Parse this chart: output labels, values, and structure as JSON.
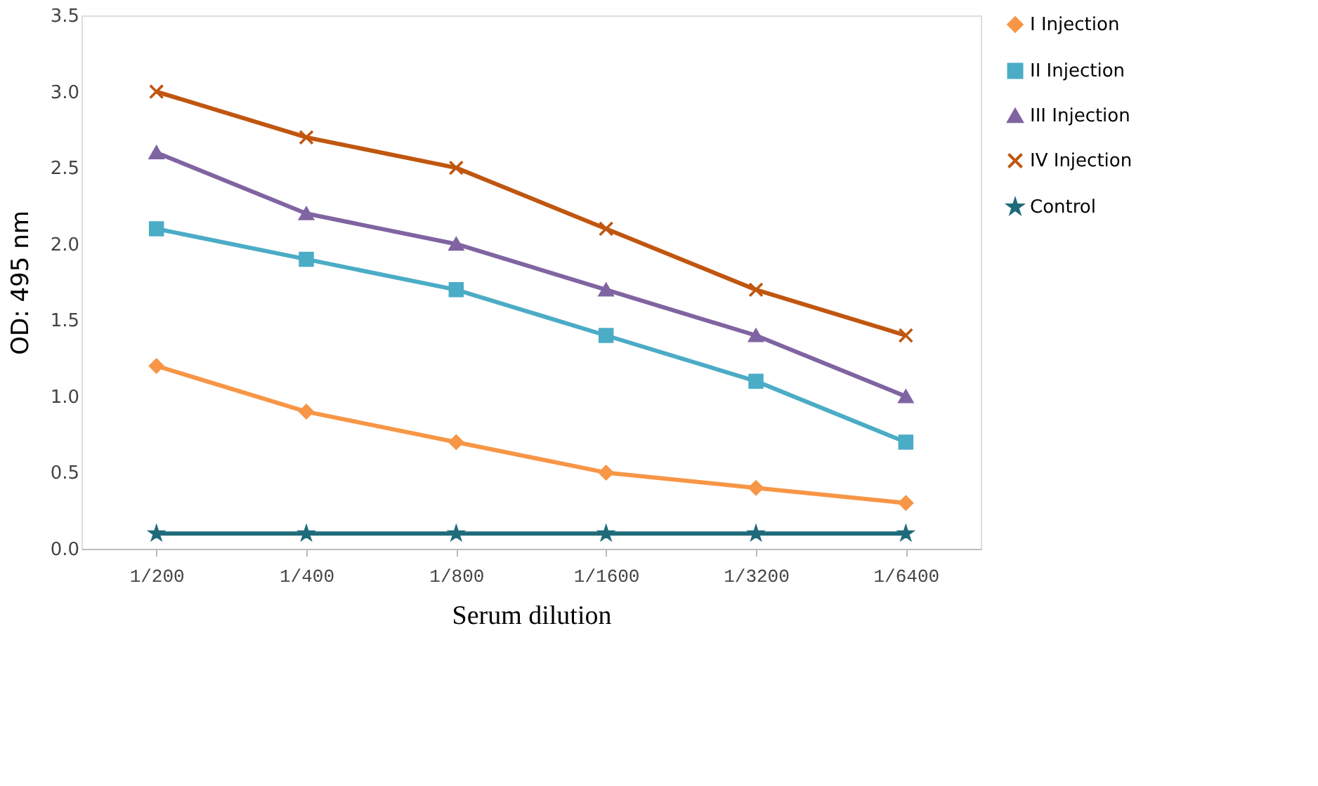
{
  "chart_data": {
    "type": "line",
    "xlabel": "Serum dilution",
    "ylabel": "OD: 495 nm",
    "categories": [
      "1/200",
      "1/400",
      "1/800",
      "1/1600",
      "1/3200",
      "1/6400"
    ],
    "series": [
      {
        "name": "I Injection",
        "color": "#f79646",
        "marker": "diamond",
        "values": [
          1.2,
          0.9,
          0.7,
          0.5,
          0.4,
          0.3
        ]
      },
      {
        "name": "II Injection",
        "color": "#4bacc6",
        "marker": "square",
        "values": [
          2.1,
          1.9,
          1.7,
          1.4,
          1.1,
          0.7
        ]
      },
      {
        "name": "III Injection",
        "color": "#8064a2",
        "marker": "triangle",
        "values": [
          2.6,
          2.2,
          2.0,
          1.7,
          1.4,
          1.0
        ]
      },
      {
        "name": "IV Injection",
        "color": "#c0560f",
        "marker": "cross",
        "values": [
          3.0,
          2.7,
          2.5,
          2.1,
          1.7,
          1.4
        ]
      },
      {
        "name": "Control",
        "color": "#1f6b7a",
        "marker": "star",
        "values": [
          0.1,
          0.1,
          0.1,
          0.1,
          0.1,
          0.1
        ]
      }
    ],
    "ylim": [
      0,
      3.5
    ],
    "yticks": [
      {
        "value": 0,
        "label": "0.0"
      },
      0.5,
      {
        "value": 1,
        "label": "1.0"
      },
      1.5,
      {
        "value": 2,
        "label": "2.0"
      },
      2.5,
      {
        "value": 3,
        "label": "3.0"
      },
      3.5
    ],
    "grid": false,
    "legend": "top right",
    "line_style": "solid"
  }
}
